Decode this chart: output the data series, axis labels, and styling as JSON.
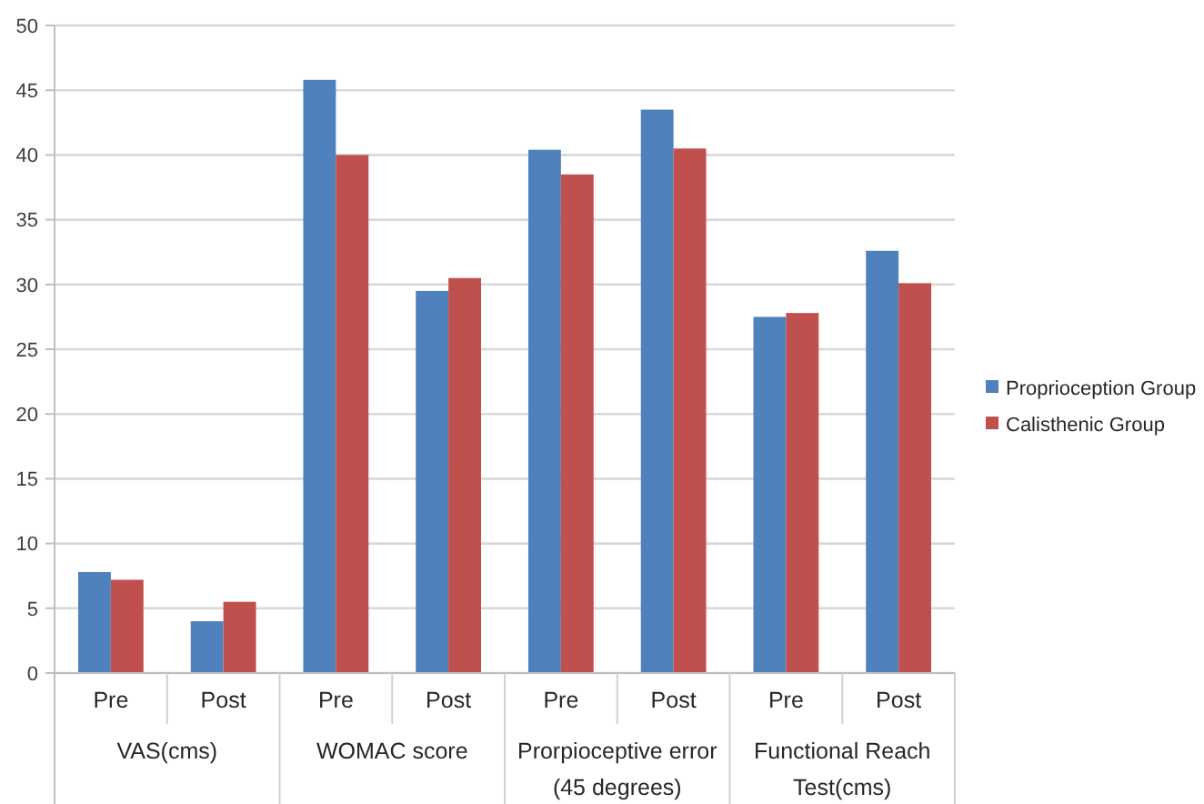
{
  "chart_data": {
    "type": "bar",
    "categories": [
      "Pre",
      "Post",
      "Pre",
      "Post",
      "Pre",
      "Post",
      "Pre",
      "Post"
    ],
    "series": [
      {
        "name": "Proprioception Group",
        "color": "#4f81bd",
        "values": [
          7.8,
          4,
          45.8,
          29.5,
          40.4,
          43.5,
          27.5,
          32.6
        ]
      },
      {
        "name": "Calisthenic Group",
        "color": "#c0504d",
        "values": [
          7.2,
          5.5,
          40,
          30.5,
          38.5,
          40.5,
          27.8,
          30.1
        ]
      }
    ],
    "annotations": [
      "VAS(cms)",
      "WOMAC score",
      "Prorpioceptive error (45 degrees)",
      "Functional Reach Test(cms)"
    ],
    "ylim": [
      0,
      50
    ],
    "yticks": [
      0,
      5,
      10,
      15,
      20,
      25,
      30,
      35,
      40,
      45,
      50
    ],
    "grid": "y",
    "legend": "right"
  }
}
